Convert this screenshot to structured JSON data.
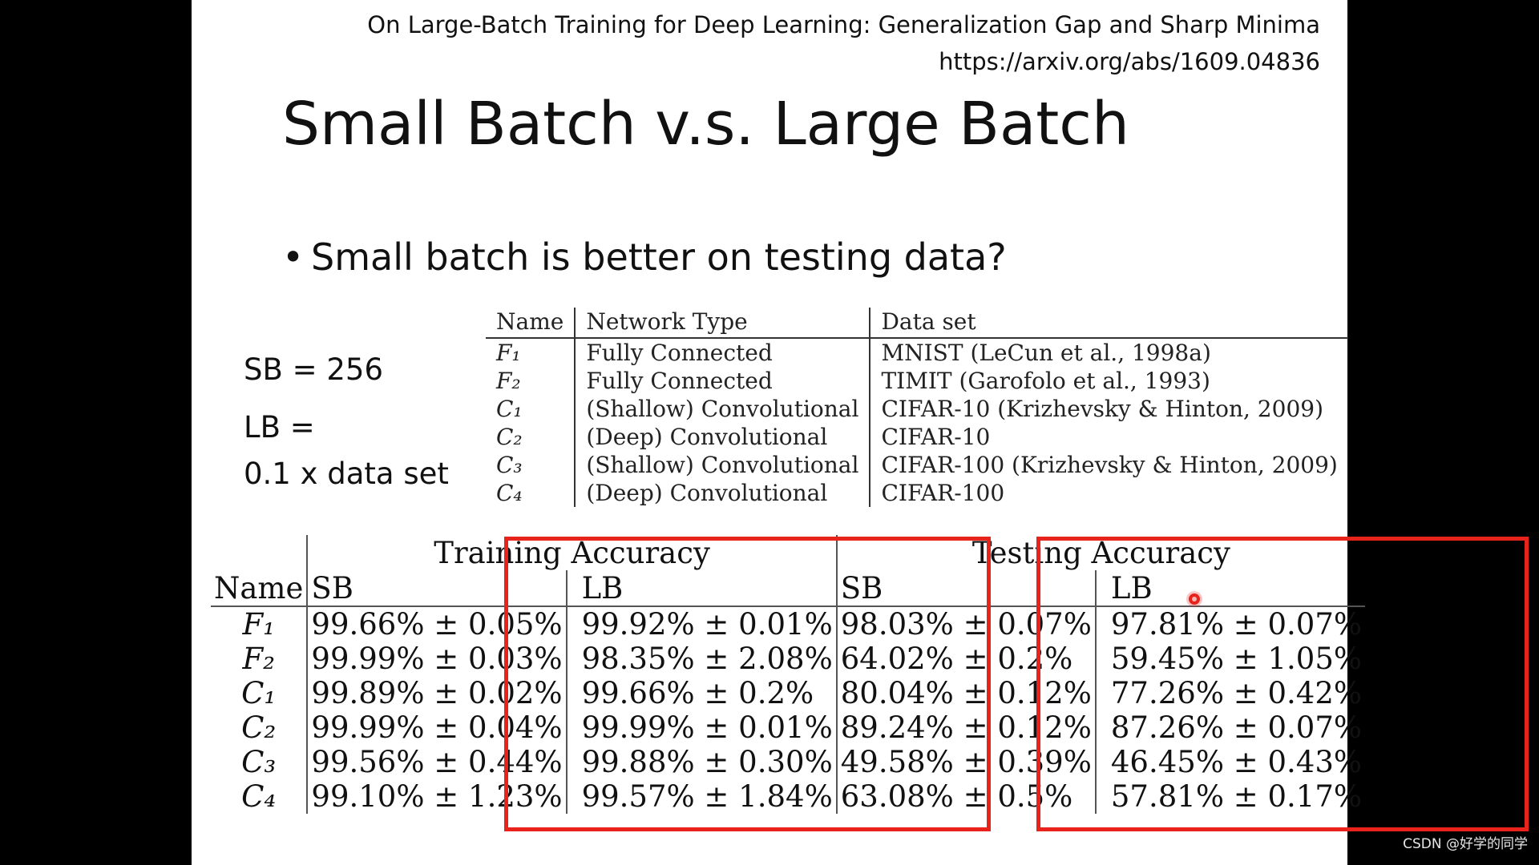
{
  "slide": {
    "reference_title": "On Large-Batch Training for Deep Learning: Generalization Gap and Sharp Minima",
    "reference_url": "https://arxiv.org/abs/1609.04836",
    "title": "Small Batch v.s. Large Batch",
    "bullet": "Small batch is better on testing data?",
    "bullet_symbol": "•",
    "sb_text": "SB = 256",
    "lb_text_line1": "LB =",
    "lb_text_line2": "0.1 x data set"
  },
  "network_table": {
    "headers": [
      "Name",
      "Network Type",
      "Data set"
    ],
    "rows": [
      [
        "F₁",
        "Fully Connected",
        "MNIST (LeCun et al., 1998a)"
      ],
      [
        "F₂",
        "Fully Connected",
        "TIMIT (Garofolo et al., 1993)"
      ],
      [
        "C₁",
        "(Shallow) Convolutional",
        "CIFAR-10 (Krizhevsky & Hinton, 2009)"
      ],
      [
        "C₂",
        "(Deep) Convolutional",
        "CIFAR-10"
      ],
      [
        "C₃",
        "(Shallow) Convolutional",
        "CIFAR-100 (Krizhevsky & Hinton, 2009)"
      ],
      [
        "C₄",
        "(Deep) Convolutional",
        "CIFAR-100"
      ]
    ]
  },
  "accuracy_table": {
    "group_training": "Training Accuracy",
    "group_testing": "Testing Accuracy",
    "col_name": "Name",
    "col_sb": "SB",
    "col_lb": "LB",
    "rows": [
      [
        "F₁",
        "99.66% ± 0.05%",
        "99.92% ± 0.01%",
        "98.03% ± 0.07%",
        "97.81% ± 0.07%"
      ],
      [
        "F₂",
        "99.99% ± 0.03%",
        "98.35% ± 2.08%",
        "64.02% ± 0.2%",
        "59.45% ± 1.05%"
      ],
      [
        "C₁",
        "99.89% ± 0.02%",
        "99.66% ± 0.2%",
        "80.04% ± 0.12%",
        "77.26% ± 0.42%"
      ],
      [
        "C₂",
        "99.99% ± 0.04%",
        "99.99% ± 0.01%",
        "89.24% ± 0.12%",
        "87.26% ± 0.07%"
      ],
      [
        "C₃",
        "99.56% ± 0.44%",
        "99.88% ± 0.30%",
        "49.58% ± 0.39%",
        "46.45% ± 0.43%"
      ],
      [
        "C₄",
        "99.10% ± 1.23%",
        "99.57% ± 1.84%",
        "63.08% ± 0.5%",
        "57.81% ± 0.17%"
      ]
    ]
  },
  "annotations": {
    "highlight_color": "#e8231b",
    "cursor_color": "#e8231b"
  },
  "watermark": "CSDN @好学的同学"
}
